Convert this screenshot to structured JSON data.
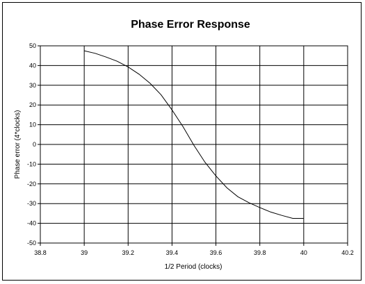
{
  "chart_data": {
    "type": "line",
    "title": "Phase Error Response",
    "xlabel": "1/2 Period (clocks)",
    "ylabel": "Phase error (4*clocks)",
    "xlim": [
      38.8,
      40.2
    ],
    "ylim": [
      -50,
      50
    ],
    "x_ticks": [
      "38.8",
      "39",
      "39.2",
      "39.4",
      "39.6",
      "39.8",
      "40",
      "40.2"
    ],
    "y_ticks": [
      "50",
      "40",
      "30",
      "20",
      "10",
      "0",
      "-10",
      "-20",
      "-30",
      "-40",
      "-50"
    ],
    "grid": true,
    "legend": "none",
    "series": [
      {
        "color": "#000000",
        "x": [
          39.0,
          39.05,
          39.1,
          39.15,
          39.2,
          39.25,
          39.3,
          39.35,
          39.4,
          39.45,
          39.5,
          39.55,
          39.6,
          39.65,
          39.7,
          39.75,
          39.8,
          39.85,
          39.9,
          39.95,
          40.0
        ],
        "y": [
          47.5,
          46.2,
          44.3,
          42.2,
          39.3,
          35.6,
          31.0,
          25.2,
          17.5,
          9.0,
          -0.5,
          -9.0,
          -16.0,
          -22.0,
          -26.5,
          -29.5,
          -32.0,
          -34.3,
          -36.0,
          -37.5,
          -37.5
        ]
      }
    ]
  }
}
